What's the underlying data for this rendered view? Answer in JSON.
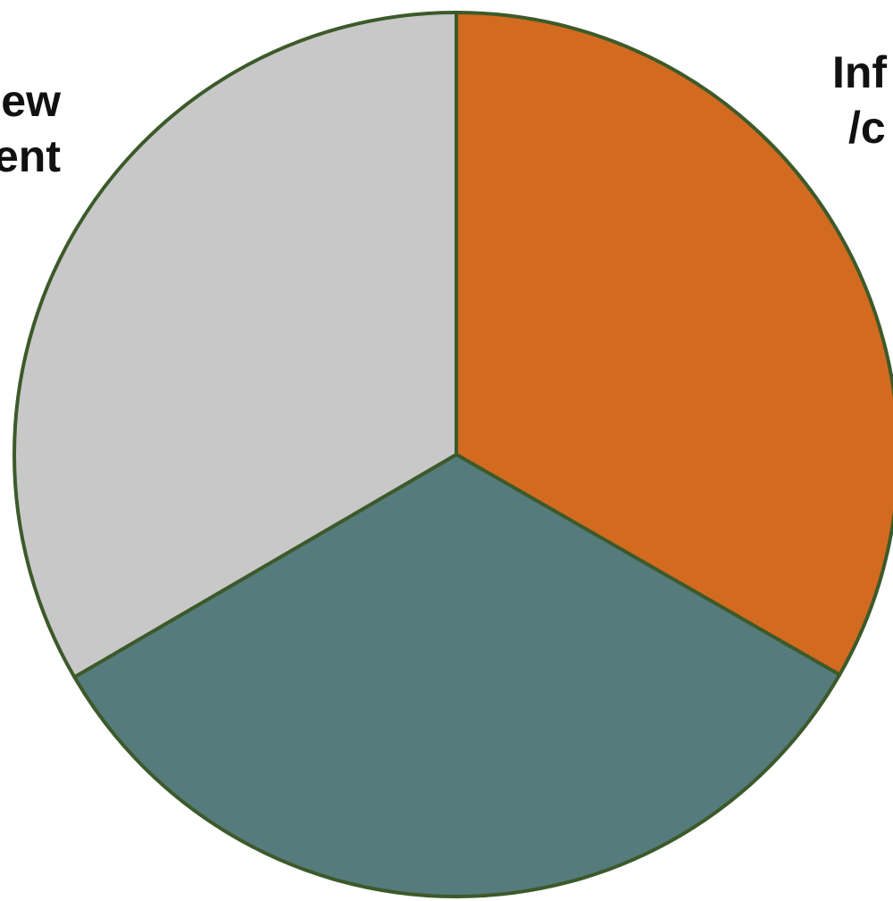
{
  "chart_data": {
    "type": "pie",
    "title": "",
    "start_angle_deg": 0,
    "direction": "clockwise",
    "slice_edge_color": "#3c5a2a",
    "slices": [
      {
        "label_lines": [
          "Inf",
          "/c"
        ],
        "value": 33.3,
        "color": "#d26a20"
      },
      {
        "label_lines": [],
        "value": 33.3,
        "color": "#567b7d"
      },
      {
        "label_lines": [
          "ew",
          "ent"
        ],
        "value": 33.4,
        "color": "#c8c8c8"
      }
    ]
  }
}
